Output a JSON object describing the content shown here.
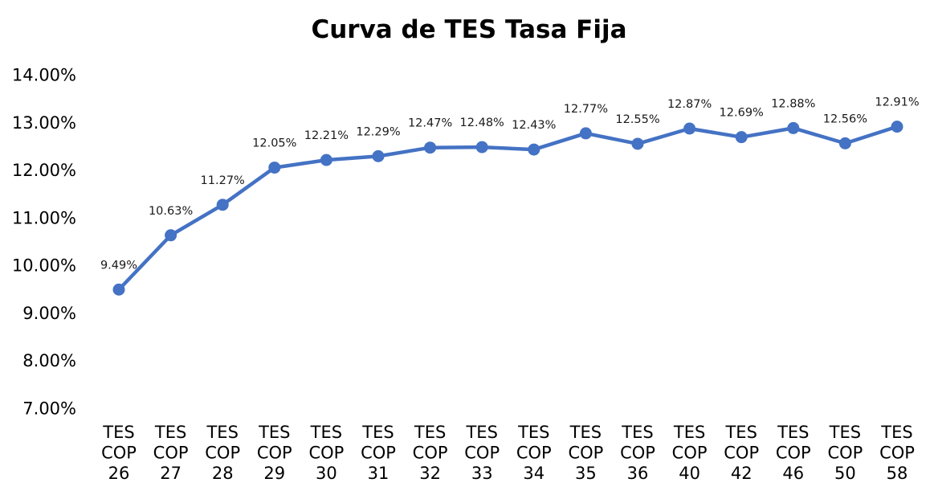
{
  "chart_data": {
    "type": "line",
    "title": "Curva de TES Tasa Fija",
    "xlabel": "",
    "ylabel": "",
    "categories": [
      [
        "TES",
        "COP",
        "26"
      ],
      [
        "TES",
        "COP",
        "27"
      ],
      [
        "TES",
        "COP",
        "28"
      ],
      [
        "TES",
        "COP",
        "29"
      ],
      [
        "TES",
        "COP",
        "30"
      ],
      [
        "TES",
        "COP",
        "31"
      ],
      [
        "TES",
        "COP",
        "32"
      ],
      [
        "TES",
        "COP",
        "33"
      ],
      [
        "TES",
        "COP",
        "34"
      ],
      [
        "TES",
        "COP",
        "35"
      ],
      [
        "TES",
        "COP",
        "36"
      ],
      [
        "TES",
        "COP",
        "40"
      ],
      [
        "TES",
        "COP",
        "42"
      ],
      [
        "TES",
        "COP",
        "46"
      ],
      [
        "TES",
        "COP",
        "50"
      ],
      [
        "TES",
        "COP",
        "58"
      ]
    ],
    "series": [
      {
        "values": [
          9.49,
          10.63,
          11.27,
          12.05,
          12.21,
          12.29,
          12.47,
          12.48,
          12.43,
          12.77,
          12.55,
          12.87,
          12.69,
          12.88,
          12.56,
          12.91
        ],
        "data_labels": [
          "9.49%",
          "10.63%",
          "11.27%",
          "12.05%",
          "12.21%",
          "12.29%",
          "12.47%",
          "12.48%",
          "12.43%",
          "12.77%",
          "12.55%",
          "12.87%",
          "12.69%",
          "12.88%",
          "12.56%",
          "12.91%"
        ],
        "color": "#4472C4"
      }
    ],
    "ylim": [
      7,
      14
    ],
    "yticks": [
      7,
      8,
      9,
      10,
      11,
      12,
      13,
      14
    ],
    "ytick_labels": [
      "7.00%",
      "8.00%",
      "9.00%",
      "10.00%",
      "11.00%",
      "12.00%",
      "13.00%",
      "14.00%"
    ],
    "grid": false,
    "legend": "none",
    "markers": true
  }
}
